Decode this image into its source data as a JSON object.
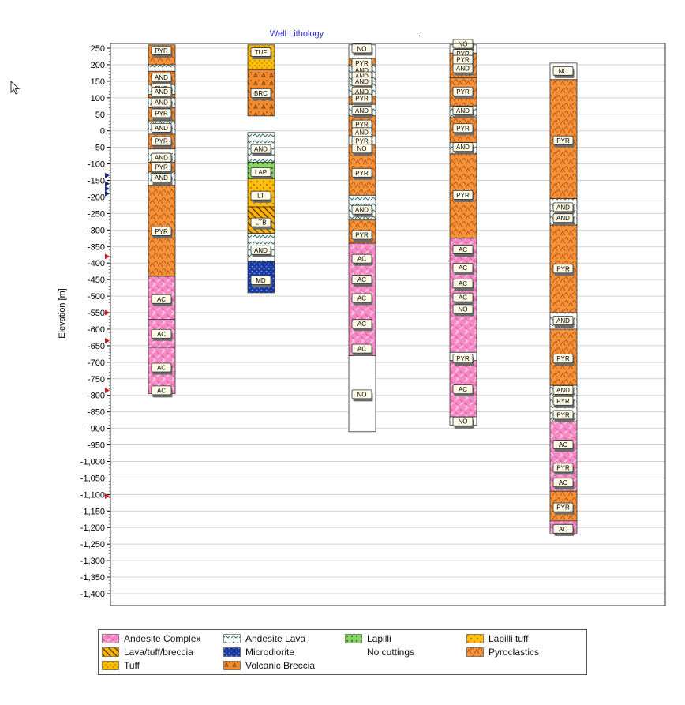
{
  "chart_data": {
    "type": "well_lithology_log",
    "title": "Well Lithology",
    "ylabel": "Elevation [m]",
    "ylim": [
      -1400,
      260
    ],
    "yticks": [
      250,
      200,
      150,
      100,
      50,
      0,
      -50,
      -100,
      -150,
      -200,
      -250,
      -300,
      -350,
      -400,
      -450,
      -500,
      -550,
      -600,
      -650,
      -700,
      -750,
      -800,
      -850,
      -900,
      -950,
      -1000,
      -1050,
      -1100,
      -1150,
      -1200,
      -1250,
      -1300,
      -1350,
      -1400
    ],
    "ytick_labels": [
      "250",
      "200",
      "150",
      "100",
      "50",
      "0",
      "-50",
      "-100",
      "-150",
      "-200",
      "-250",
      "-300",
      "-350",
      "-400",
      "-450",
      "-500",
      "-550",
      "-600",
      "-650",
      "-700",
      "-750",
      "-800",
      "-850",
      "-900",
      "-950",
      "-1,000",
      "-1,050",
      "-1,100",
      "-1,150",
      "-1,200",
      "-1,250",
      "-1,300",
      "-1,350",
      "-1,400"
    ],
    "grid": true,
    "legend_position": "bottom",
    "marker_colors": {
      "red": "#cc1f1f",
      "navy": "#1b2a7a"
    },
    "markers": [
      {
        "elev": -135,
        "color": "navy"
      },
      {
        "elev": -160,
        "color": "navy"
      },
      {
        "elev": -175,
        "color": "navy"
      },
      {
        "elev": -190,
        "color": "navy"
      },
      {
        "elev": -380,
        "color": "red"
      },
      {
        "elev": -550,
        "color": "red"
      },
      {
        "elev": -635,
        "color": "red"
      },
      {
        "elev": -785,
        "color": "red"
      },
      {
        "elev": -1105,
        "color": "red"
      }
    ],
    "lithologies": {
      "AC": {
        "name": "Andesite Complex",
        "color": "#f58ac4",
        "pattern": "ac"
      },
      "AND": {
        "name": "Andesite Lava",
        "color": "#ffffff",
        "pattern": "and"
      },
      "LAP": {
        "name": "Lapilli",
        "color": "#8bd468",
        "pattern": "lap"
      },
      "LT": {
        "name": "Lapilli tuff",
        "color": "#ffc107",
        "pattern": "lt"
      },
      "LTB": {
        "name": "Lava/tuff/breccia",
        "color": "#ffb300",
        "pattern": "ltb"
      },
      "MD": {
        "name": "Microdiorite",
        "color": "#1a3aa0",
        "pattern": "md"
      },
      "NO": {
        "name": "No cuttings",
        "color": "#ffffff",
        "pattern": "none"
      },
      "PYR": {
        "name": "Pyroclastics",
        "color": "#f5923a",
        "pattern": "pyr"
      },
      "TUF": {
        "name": "Tuff",
        "color": "#ffc107",
        "pattern": "tuf"
      },
      "BRC": {
        "name": "Volcanic Breccia",
        "color": "#f08a30",
        "pattern": "brc"
      }
    },
    "legend": [
      {
        "code": "AC",
        "label": "Andesite Complex"
      },
      {
        "code": "AND",
        "label": "Andesite Lava"
      },
      {
        "code": "LAP",
        "label": "Lapilli"
      },
      {
        "code": "LT",
        "label": "Lapilli tuff"
      },
      {
        "code": "LTB",
        "label": "Lava/tuff/breccia"
      },
      {
        "code": "MD",
        "label": "Microdiorite"
      },
      {
        "code": "NO",
        "label": "No cuttings"
      },
      {
        "code": "PYR",
        "label": "Pyroclastics"
      },
      {
        "code": "TUF",
        "label": "Tuff"
      },
      {
        "code": "BRC",
        "label": "Volcanic Breccia"
      }
    ],
    "wells": [
      {
        "intervals": [
          {
            "top": 260,
            "bottom": 200,
            "lith": "PYR"
          },
          {
            "top": 200,
            "bottom": 180,
            "lith": "AND"
          },
          {
            "top": 180,
            "bottom": 140,
            "lith": "PYR"
          },
          {
            "top": 140,
            "bottom": 110,
            "lith": "AND"
          },
          {
            "top": 110,
            "bottom": 100,
            "lith": "PYR"
          },
          {
            "top": 100,
            "bottom": 70,
            "lith": "AND"
          },
          {
            "top": 70,
            "bottom": 30,
            "lith": "PYR"
          },
          {
            "top": 30,
            "bottom": -10,
            "lith": "AND"
          },
          {
            "top": -10,
            "bottom": -55,
            "lith": "PYR"
          },
          {
            "top": -55,
            "bottom": -95,
            "lith": "AND"
          },
          {
            "top": -95,
            "bottom": -125,
            "lith": "PYR"
          },
          {
            "top": -125,
            "bottom": -165,
            "lith": "AND"
          },
          {
            "top": -165,
            "bottom": -440,
            "lith": "PYR"
          },
          {
            "top": -440,
            "bottom": -570,
            "lith": "AC"
          },
          {
            "top": -570,
            "bottom": -655,
            "lith": "AC"
          },
          {
            "top": -655,
            "bottom": -795,
            "lith": "AC"
          }
        ],
        "labels": [
          {
            "elev": 242,
            "text": "PYR"
          },
          {
            "elev": 160,
            "text": "AND"
          },
          {
            "elev": 127,
            "text": "PYR"
          },
          {
            "elev": 117,
            "text": "AND"
          },
          {
            "elev": 85,
            "text": "AND"
          },
          {
            "elev": 52,
            "text": "PYR"
          },
          {
            "elev": 8,
            "text": "AND"
          },
          {
            "elev": -32,
            "text": "PYR"
          },
          {
            "elev": -82,
            "text": "AND"
          },
          {
            "elev": -110,
            "text": "PYR"
          },
          {
            "elev": -143,
            "text": "AND"
          },
          {
            "elev": -305,
            "text": "PYR"
          },
          {
            "elev": -510,
            "text": "AC"
          },
          {
            "elev": -615,
            "text": "AC"
          },
          {
            "elev": -717,
            "text": "AC"
          },
          {
            "elev": -786,
            "text": "AC"
          }
        ]
      },
      {
        "intervals": [
          {
            "top": 260,
            "bottom": 185,
            "lith": "TUF"
          },
          {
            "top": 185,
            "bottom": 45,
            "lith": "BRC"
          },
          {
            "top": -5,
            "bottom": -95,
            "lith": "AND"
          },
          {
            "top": -95,
            "bottom": -145,
            "lith": "LAP"
          },
          {
            "top": -145,
            "bottom": -230,
            "lith": "LT"
          },
          {
            "top": -230,
            "bottom": -310,
            "lith": "LTB"
          },
          {
            "top": -310,
            "bottom": -395,
            "lith": "AND"
          },
          {
            "top": -395,
            "bottom": -490,
            "lith": "MD"
          }
        ],
        "labels": [
          {
            "elev": 237,
            "text": "TUF"
          },
          {
            "elev": 113,
            "text": "BRC"
          },
          {
            "elev": -56,
            "text": "AND"
          },
          {
            "elev": -126,
            "text": "LAP"
          },
          {
            "elev": -197,
            "text": "LT"
          },
          {
            "elev": -278,
            "text": "LTB"
          },
          {
            "elev": -362,
            "text": "AND"
          },
          {
            "elev": -453,
            "text": "MD"
          }
        ]
      },
      {
        "intervals": [
          {
            "top": 265,
            "bottom": 220,
            "lith": "NO"
          },
          {
            "top": 220,
            "bottom": 200,
            "lith": "PYR"
          },
          {
            "top": 200,
            "bottom": 150,
            "lith": "AND"
          },
          {
            "top": 150,
            "bottom": 105,
            "lith": "AND"
          },
          {
            "top": 105,
            "bottom": 80,
            "lith": "PYR"
          },
          {
            "top": 80,
            "bottom": 45,
            "lith": "AND"
          },
          {
            "top": 45,
            "bottom": -15,
            "lith": "PYR"
          },
          {
            "top": -15,
            "bottom": -40,
            "lith": "NO"
          },
          {
            "top": -40,
            "bottom": -195,
            "lith": "PYR"
          },
          {
            "top": -195,
            "bottom": -270,
            "lith": "AND"
          },
          {
            "top": -270,
            "bottom": -340,
            "lith": "PYR"
          },
          {
            "top": -340,
            "bottom": -680,
            "lith": "AC"
          },
          {
            "top": -680,
            "bottom": -910,
            "lith": "NO"
          }
        ],
        "labels": [
          {
            "elev": 248,
            "text": "NO"
          },
          {
            "elev": 204,
            "text": "PYR"
          },
          {
            "elev": 182,
            "text": "AND"
          },
          {
            "elev": 164,
            "text": "AND"
          },
          {
            "elev": 148,
            "text": "AND"
          },
          {
            "elev": 118,
            "text": "AND"
          },
          {
            "elev": 97,
            "text": "PYR"
          },
          {
            "elev": 60,
            "text": "AND"
          },
          {
            "elev": 18,
            "text": "PYR"
          },
          {
            "elev": -5,
            "text": "AND"
          },
          {
            "elev": -32,
            "text": "PYR"
          },
          {
            "elev": -55,
            "text": "NO"
          },
          {
            "elev": -128,
            "text": "PYR"
          },
          {
            "elev": -240,
            "text": "AND"
          },
          {
            "elev": -316,
            "text": "PYR"
          },
          {
            "elev": -388,
            "text": "AC"
          },
          {
            "elev": -451,
            "text": "AC"
          },
          {
            "elev": -507,
            "text": "AC"
          },
          {
            "elev": -585,
            "text": "AC"
          },
          {
            "elev": -660,
            "text": "AC"
          },
          {
            "elev": -798,
            "text": "NO"
          }
        ]
      },
      {
        "intervals": [
          {
            "top": 265,
            "bottom": 235,
            "lith": "NO"
          },
          {
            "top": 235,
            "bottom": 160,
            "lith": "PYR"
          },
          {
            "top": 160,
            "bottom": 75,
            "lith": "PYR"
          },
          {
            "top": 75,
            "bottom": 40,
            "lith": "AND"
          },
          {
            "top": 40,
            "bottom": -35,
            "lith": "PYR"
          },
          {
            "top": -35,
            "bottom": -70,
            "lith": "AND"
          },
          {
            "top": -70,
            "bottom": -325,
            "lith": "PYR"
          },
          {
            "top": -325,
            "bottom": -670,
            "lith": "AC"
          },
          {
            "top": -670,
            "bottom": -695,
            "lith": "NO"
          },
          {
            "top": -695,
            "bottom": -865,
            "lith": "AC"
          },
          {
            "top": -865,
            "bottom": -890,
            "lith": "NO"
          }
        ],
        "labels": [
          {
            "elev": 262,
            "text": "NO"
          },
          {
            "elev": 232,
            "text": "PYR"
          },
          {
            "elev": 214,
            "text": "PYR"
          },
          {
            "elev": 188,
            "text": "AND"
          },
          {
            "elev": 118,
            "text": "PYR"
          },
          {
            "elev": 60,
            "text": "AND"
          },
          {
            "elev": 7,
            "text": "PYR"
          },
          {
            "elev": -50,
            "text": "AND"
          },
          {
            "elev": -195,
            "text": "PYR"
          },
          {
            "elev": -360,
            "text": "AC"
          },
          {
            "elev": -415,
            "text": "AC"
          },
          {
            "elev": -463,
            "text": "AC"
          },
          {
            "elev": -505,
            "text": "AC"
          },
          {
            "elev": -540,
            "text": "NO"
          },
          {
            "elev": -690,
            "text": "PYR"
          },
          {
            "elev": -783,
            "text": "AC"
          },
          {
            "elev": -880,
            "text": "NO"
          }
        ]
      },
      {
        "intervals": [
          {
            "top": 205,
            "bottom": 155,
            "lith": "NO"
          },
          {
            "top": 155,
            "bottom": -205,
            "lith": "PYR"
          },
          {
            "top": -205,
            "bottom": -285,
            "lith": "AND"
          },
          {
            "top": -285,
            "bottom": -550,
            "lith": "PYR"
          },
          {
            "top": -550,
            "bottom": -600,
            "lith": "AND"
          },
          {
            "top": -600,
            "bottom": -770,
            "lith": "PYR"
          },
          {
            "top": -770,
            "bottom": -880,
            "lith": "AND"
          },
          {
            "top": -880,
            "bottom": -1090,
            "lith": "AC"
          },
          {
            "top": -1090,
            "bottom": -1180,
            "lith": "PYR"
          },
          {
            "top": -1180,
            "bottom": -1220,
            "lith": "AC"
          }
        ],
        "labels": [
          {
            "elev": 180,
            "text": "NO"
          },
          {
            "elev": -30,
            "text": "PYR"
          },
          {
            "elev": -232,
            "text": "AND"
          },
          {
            "elev": -265,
            "text": "AND"
          },
          {
            "elev": -418,
            "text": "PYR"
          },
          {
            "elev": -575,
            "text": "AND"
          },
          {
            "elev": -690,
            "text": "PYR"
          },
          {
            "elev": -785,
            "text": "AND"
          },
          {
            "elev": -818,
            "text": "PYR"
          },
          {
            "elev": -860,
            "text": "PYR"
          },
          {
            "elev": -950,
            "text": "AC"
          },
          {
            "elev": -1020,
            "text": "PYR"
          },
          {
            "elev": -1065,
            "text": "AC"
          },
          {
            "elev": -1140,
            "text": "PYR"
          },
          {
            "elev": -1205,
            "text": "AC"
          }
        ]
      }
    ]
  }
}
